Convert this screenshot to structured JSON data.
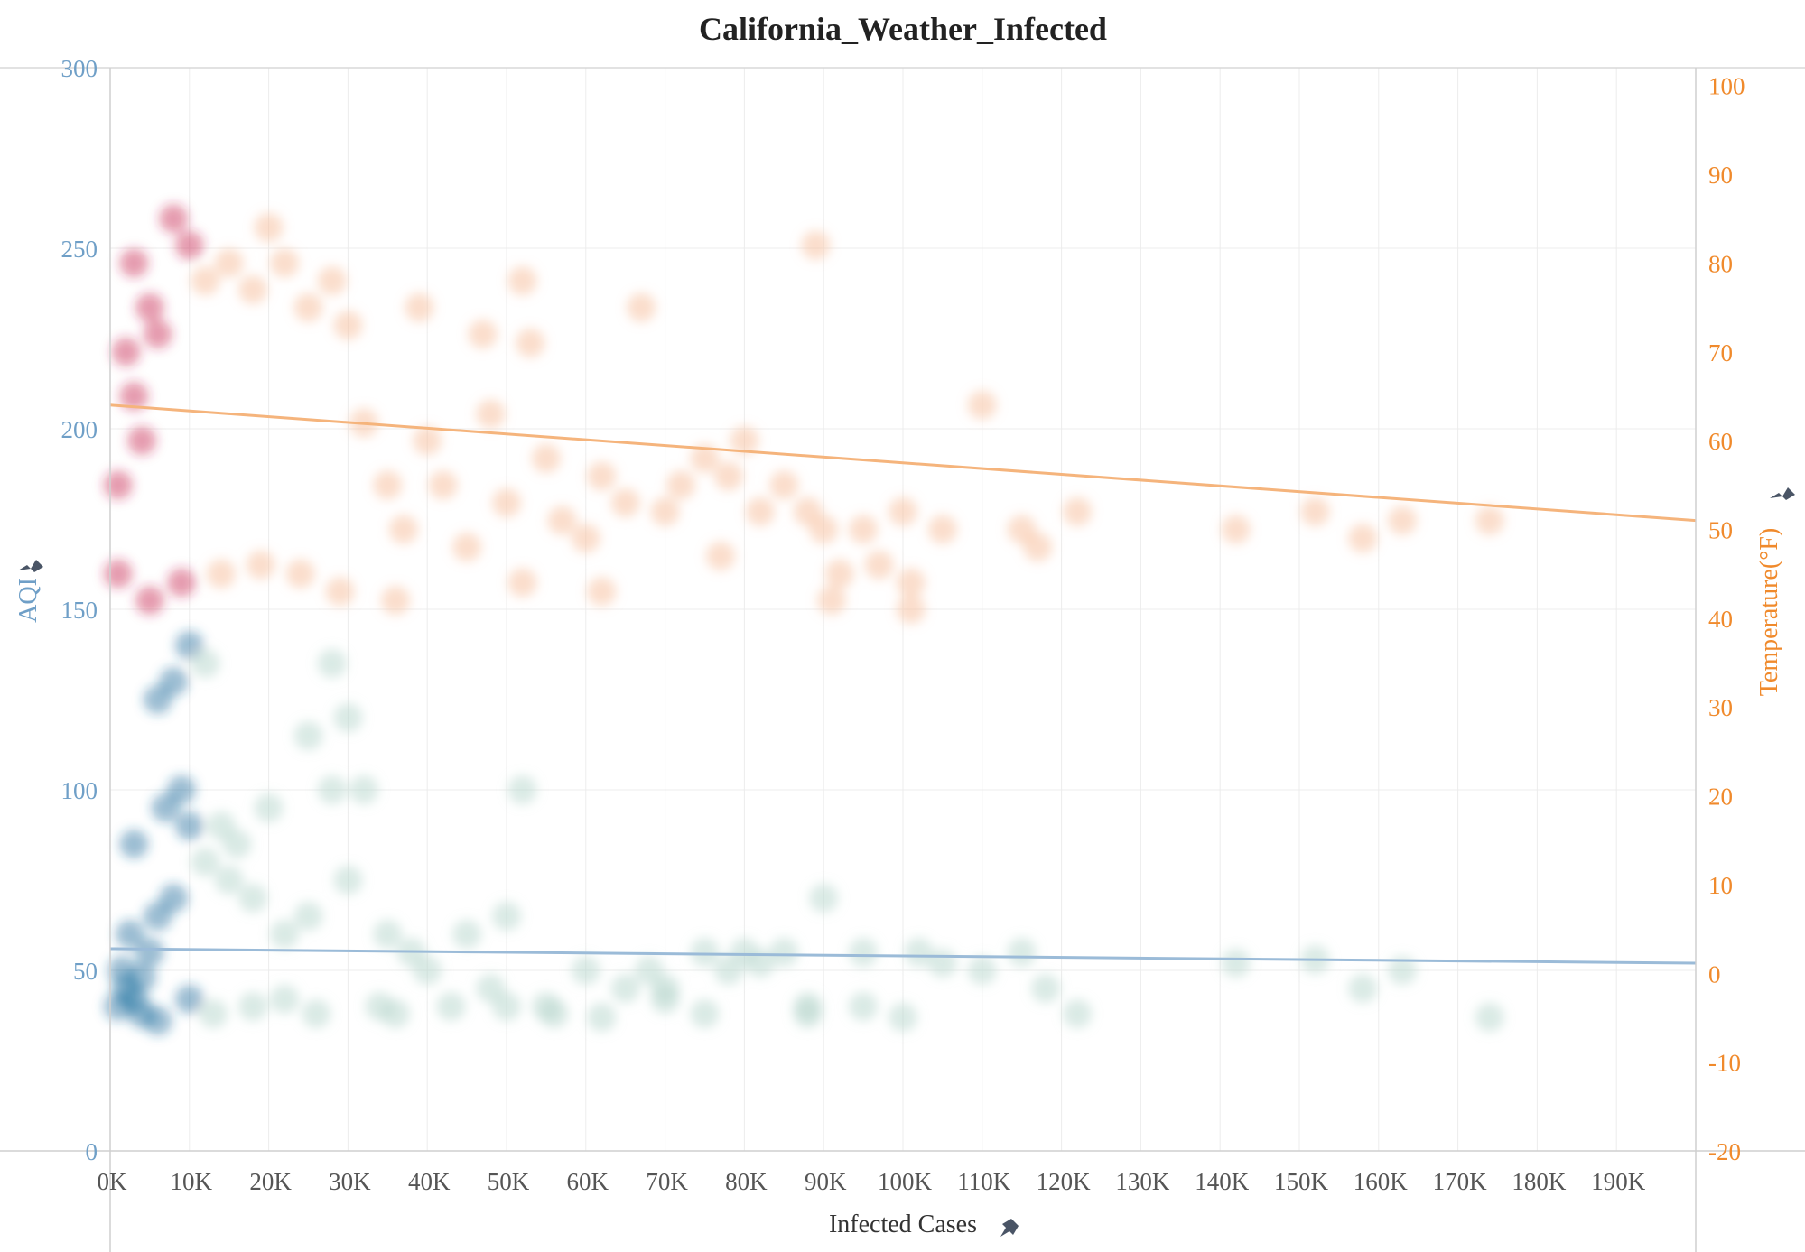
{
  "chart_data": {
    "type": "scatter",
    "title": "California_Weather_Infected",
    "xlabel": "Infected Cases",
    "ylabel_left": "AQI",
    "ylabel_right": "Temperature(°F)",
    "x_ticks": [
      "0K",
      "10K",
      "20K",
      "30K",
      "40K",
      "50K",
      "60K",
      "70K",
      "80K",
      "90K",
      "100K",
      "110K",
      "120K",
      "130K",
      "140K",
      "150K",
      "160K",
      "170K",
      "180K",
      "190K"
    ],
    "aqi_ticks": [
      "0",
      "50",
      "100",
      "150",
      "200",
      "250",
      "300"
    ],
    "temp_ticks": [
      "-20",
      "-10",
      "0",
      "10",
      "20",
      "30",
      "40",
      "50",
      "60",
      "70",
      "80",
      "90",
      "100"
    ],
    "xlim": [
      0,
      200000
    ],
    "aqi_ylim": [
      0,
      300
    ],
    "temp_ylim": [
      -20,
      102
    ],
    "grid": true,
    "colors": {
      "aqi_light": "#bcd9d0",
      "aqi_dark": "#1f6f9e",
      "temp_light": "#f7c3a3",
      "temp_dark": "#c8234f",
      "aqi_trend": "#9bbbd8",
      "temp_trend": "#f5b47c"
    },
    "series": [
      {
        "axis": "left",
        "trend": [
          [
            0,
            56
          ],
          [
            200000,
            52
          ]
        ],
        "points": [
          [
            1000,
            40
          ],
          [
            2000,
            45
          ],
          [
            3000,
            42
          ],
          [
            1500,
            50
          ],
          [
            4000,
            48
          ],
          [
            5000,
            55
          ],
          [
            2500,
            60
          ],
          [
            6000,
            65
          ],
          [
            8000,
            70
          ],
          [
            3000,
            85
          ],
          [
            7000,
            95
          ],
          [
            9000,
            100
          ],
          [
            10000,
            90
          ],
          [
            12000,
            80
          ],
          [
            15000,
            75
          ],
          [
            18000,
            70
          ],
          [
            20000,
            95
          ],
          [
            22000,
            60
          ],
          [
            25000,
            65
          ],
          [
            28000,
            100
          ],
          [
            30000,
            75
          ],
          [
            32000,
            100
          ],
          [
            35000,
            60
          ],
          [
            38000,
            55
          ],
          [
            40000,
            50
          ],
          [
            45000,
            60
          ],
          [
            48000,
            45
          ],
          [
            50000,
            65
          ],
          [
            52000,
            100
          ],
          [
            55000,
            40
          ],
          [
            60000,
            50
          ],
          [
            65000,
            45
          ],
          [
            68000,
            50
          ],
          [
            70000,
            45
          ],
          [
            75000,
            55
          ],
          [
            78000,
            50
          ],
          [
            80000,
            55
          ],
          [
            82000,
            52
          ],
          [
            85000,
            55
          ],
          [
            88000,
            40
          ],
          [
            90000,
            70
          ],
          [
            95000,
            55
          ],
          [
            100000,
            37
          ],
          [
            102000,
            55
          ],
          [
            105000,
            52
          ],
          [
            110000,
            50
          ],
          [
            115000,
            55
          ],
          [
            118000,
            45
          ],
          [
            122000,
            38
          ],
          [
            142000,
            52
          ],
          [
            152000,
            53
          ],
          [
            158000,
            45
          ],
          [
            163000,
            50
          ],
          [
            174000,
            37
          ],
          [
            8000,
            130
          ],
          [
            10000,
            140
          ],
          [
            12000,
            135
          ],
          [
            6000,
            125
          ],
          [
            28000,
            135
          ],
          [
            30000,
            120
          ],
          [
            25000,
            115
          ],
          [
            14000,
            90
          ],
          [
            16000,
            85
          ],
          [
            4000,
            38
          ],
          [
            6000,
            36
          ],
          [
            10000,
            42
          ],
          [
            13000,
            38
          ],
          [
            18000,
            40
          ],
          [
            22000,
            42
          ],
          [
            26000,
            38
          ],
          [
            34000,
            40
          ],
          [
            36000,
            38
          ],
          [
            43000,
            40
          ],
          [
            50000,
            40
          ],
          [
            56000,
            38
          ],
          [
            62000,
            37
          ],
          [
            70000,
            42
          ],
          [
            75000,
            38
          ],
          [
            88000,
            38
          ],
          [
            95000,
            40
          ]
        ]
      },
      {
        "axis": "right",
        "trend": [
          [
            0,
            64
          ],
          [
            200000,
            51
          ]
        ],
        "points": [
          [
            2000,
            70
          ],
          [
            3000,
            65
          ],
          [
            1000,
            55
          ],
          [
            4000,
            60
          ],
          [
            5000,
            75
          ],
          [
            3000,
            80
          ],
          [
            6000,
            72
          ],
          [
            8000,
            85
          ],
          [
            10000,
            82
          ],
          [
            12000,
            78
          ],
          [
            15000,
            80
          ],
          [
            18000,
            77
          ],
          [
            20000,
            84
          ],
          [
            22000,
            80
          ],
          [
            25000,
            75
          ],
          [
            28000,
            78
          ],
          [
            30000,
            73
          ],
          [
            32000,
            62
          ],
          [
            35000,
            55
          ],
          [
            37000,
            50
          ],
          [
            39000,
            75
          ],
          [
            40000,
            60
          ],
          [
            42000,
            55
          ],
          [
            45000,
            48
          ],
          [
            47000,
            72
          ],
          [
            48000,
            63
          ],
          [
            50000,
            53
          ],
          [
            52000,
            78
          ],
          [
            53000,
            71
          ],
          [
            55000,
            58
          ],
          [
            57000,
            51
          ],
          [
            60000,
            49
          ],
          [
            62000,
            56
          ],
          [
            65000,
            53
          ],
          [
            67000,
            75
          ],
          [
            70000,
            52
          ],
          [
            72000,
            55
          ],
          [
            75000,
            58
          ],
          [
            78000,
            56
          ],
          [
            80000,
            60
          ],
          [
            82000,
            52
          ],
          [
            85000,
            55
          ],
          [
            88000,
            52
          ],
          [
            89000,
            82
          ],
          [
            90000,
            50
          ],
          [
            92000,
            45
          ],
          [
            95000,
            50
          ],
          [
            97000,
            46
          ],
          [
            100000,
            52
          ],
          [
            101000,
            44
          ],
          [
            105000,
            50
          ],
          [
            110000,
            64
          ],
          [
            115000,
            50
          ],
          [
            117000,
            48
          ],
          [
            122000,
            52
          ],
          [
            142000,
            50
          ],
          [
            152000,
            52
          ],
          [
            158000,
            49
          ],
          [
            163000,
            51
          ],
          [
            174000,
            51
          ],
          [
            1000,
            45
          ],
          [
            5000,
            42
          ],
          [
            9000,
            44
          ],
          [
            14000,
            45
          ],
          [
            19000,
            46
          ],
          [
            24000,
            45
          ],
          [
            29000,
            43
          ],
          [
            36000,
            42
          ],
          [
            52000,
            44
          ],
          [
            62000,
            43
          ],
          [
            77000,
            47
          ],
          [
            91000,
            42
          ],
          [
            101000,
            41
          ]
        ]
      }
    ]
  }
}
